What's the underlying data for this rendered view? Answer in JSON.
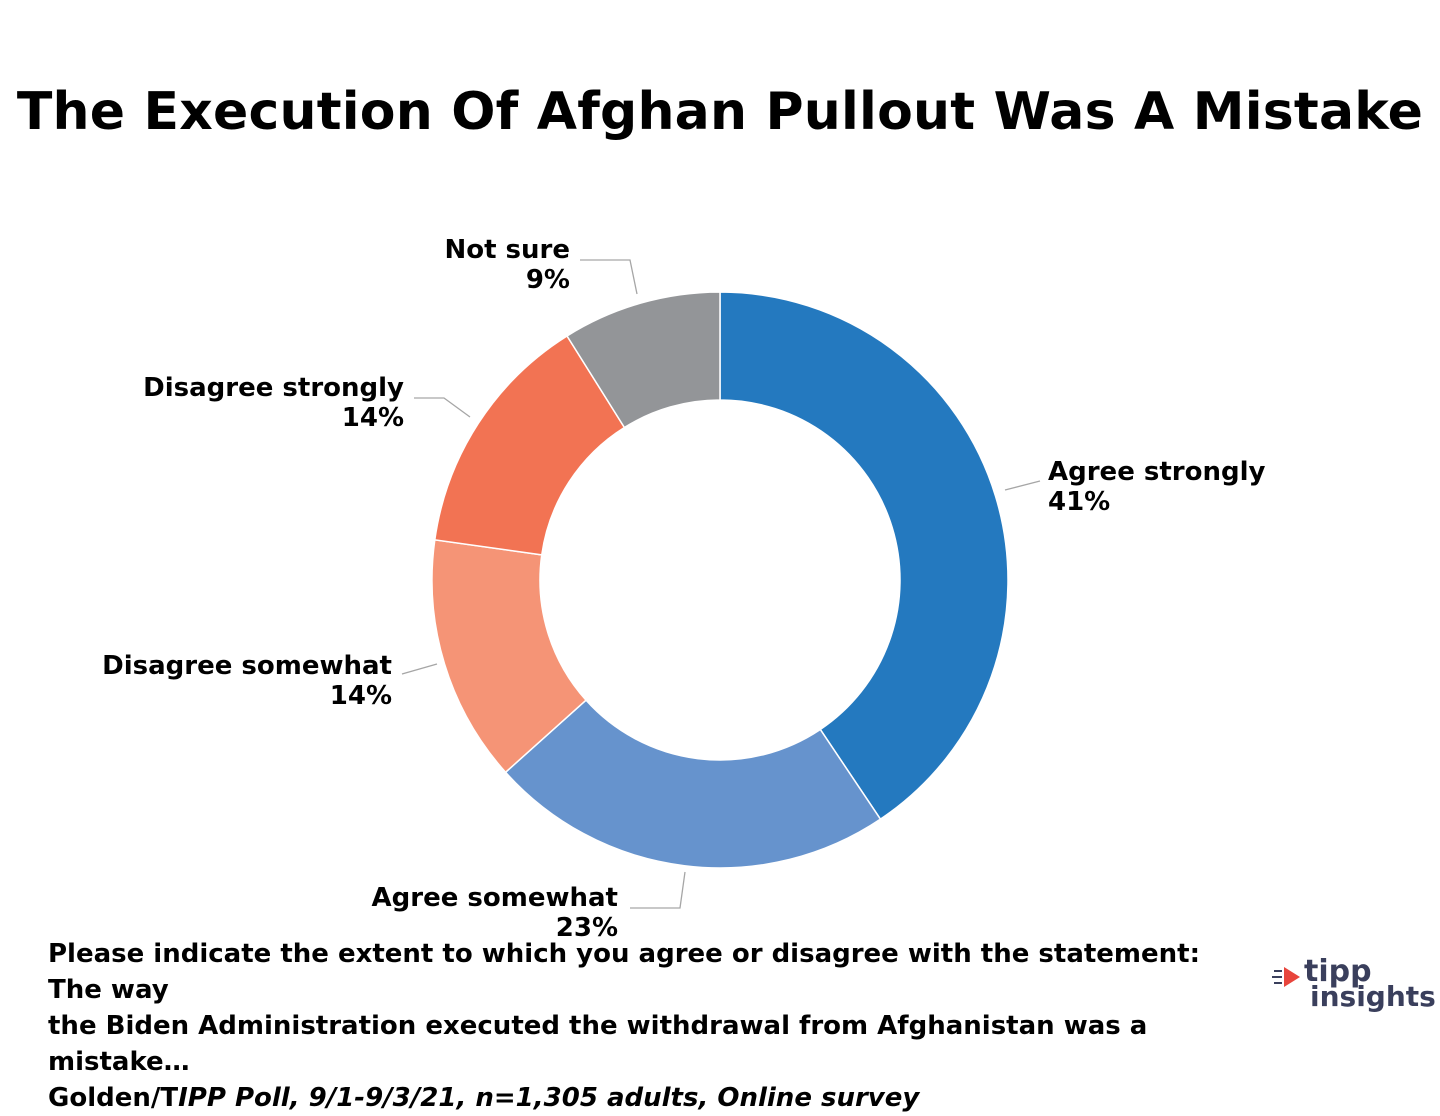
{
  "chart_data": {
    "type": "pie",
    "style": "donut",
    "title": "The Execution Of Afghan Pullout Was A Mistake",
    "slices": [
      {
        "label": "Agree strongly",
        "value": 41,
        "value_label": "41%",
        "color": "#2479bf"
      },
      {
        "label": "Agree somewhat",
        "value": 23,
        "value_label": "23%",
        "color": "#6693cd"
      },
      {
        "label": "Disagree somewhat",
        "value": 14,
        "value_label": "14%",
        "color": "#f59476"
      },
      {
        "label": "Disagree strongly",
        "value": 14,
        "value_label": "14%",
        "color": "#f27353"
      },
      {
        "label": "Not sure",
        "value": 9,
        "value_label": "9%",
        "color": "#939598"
      }
    ],
    "start_angle_deg": 0,
    "direction": "clockwise",
    "legend": "none"
  },
  "footer": {
    "line1": "Please indicate the extent to which you agree or disagree with the statement: The way",
    "line2": "the Biden Administration executed the withdrawal from Afghanistan was a mistake…",
    "line3_normal": "Golden/T",
    "line3_italic": "IPP Poll, 9/1-9/3/21, n=1,305 adults, Online survey"
  },
  "logo": {
    "word1": "tipp",
    "word2": "insights",
    "accent_color": "#e8453c",
    "text_color": "#3a3f5c"
  }
}
